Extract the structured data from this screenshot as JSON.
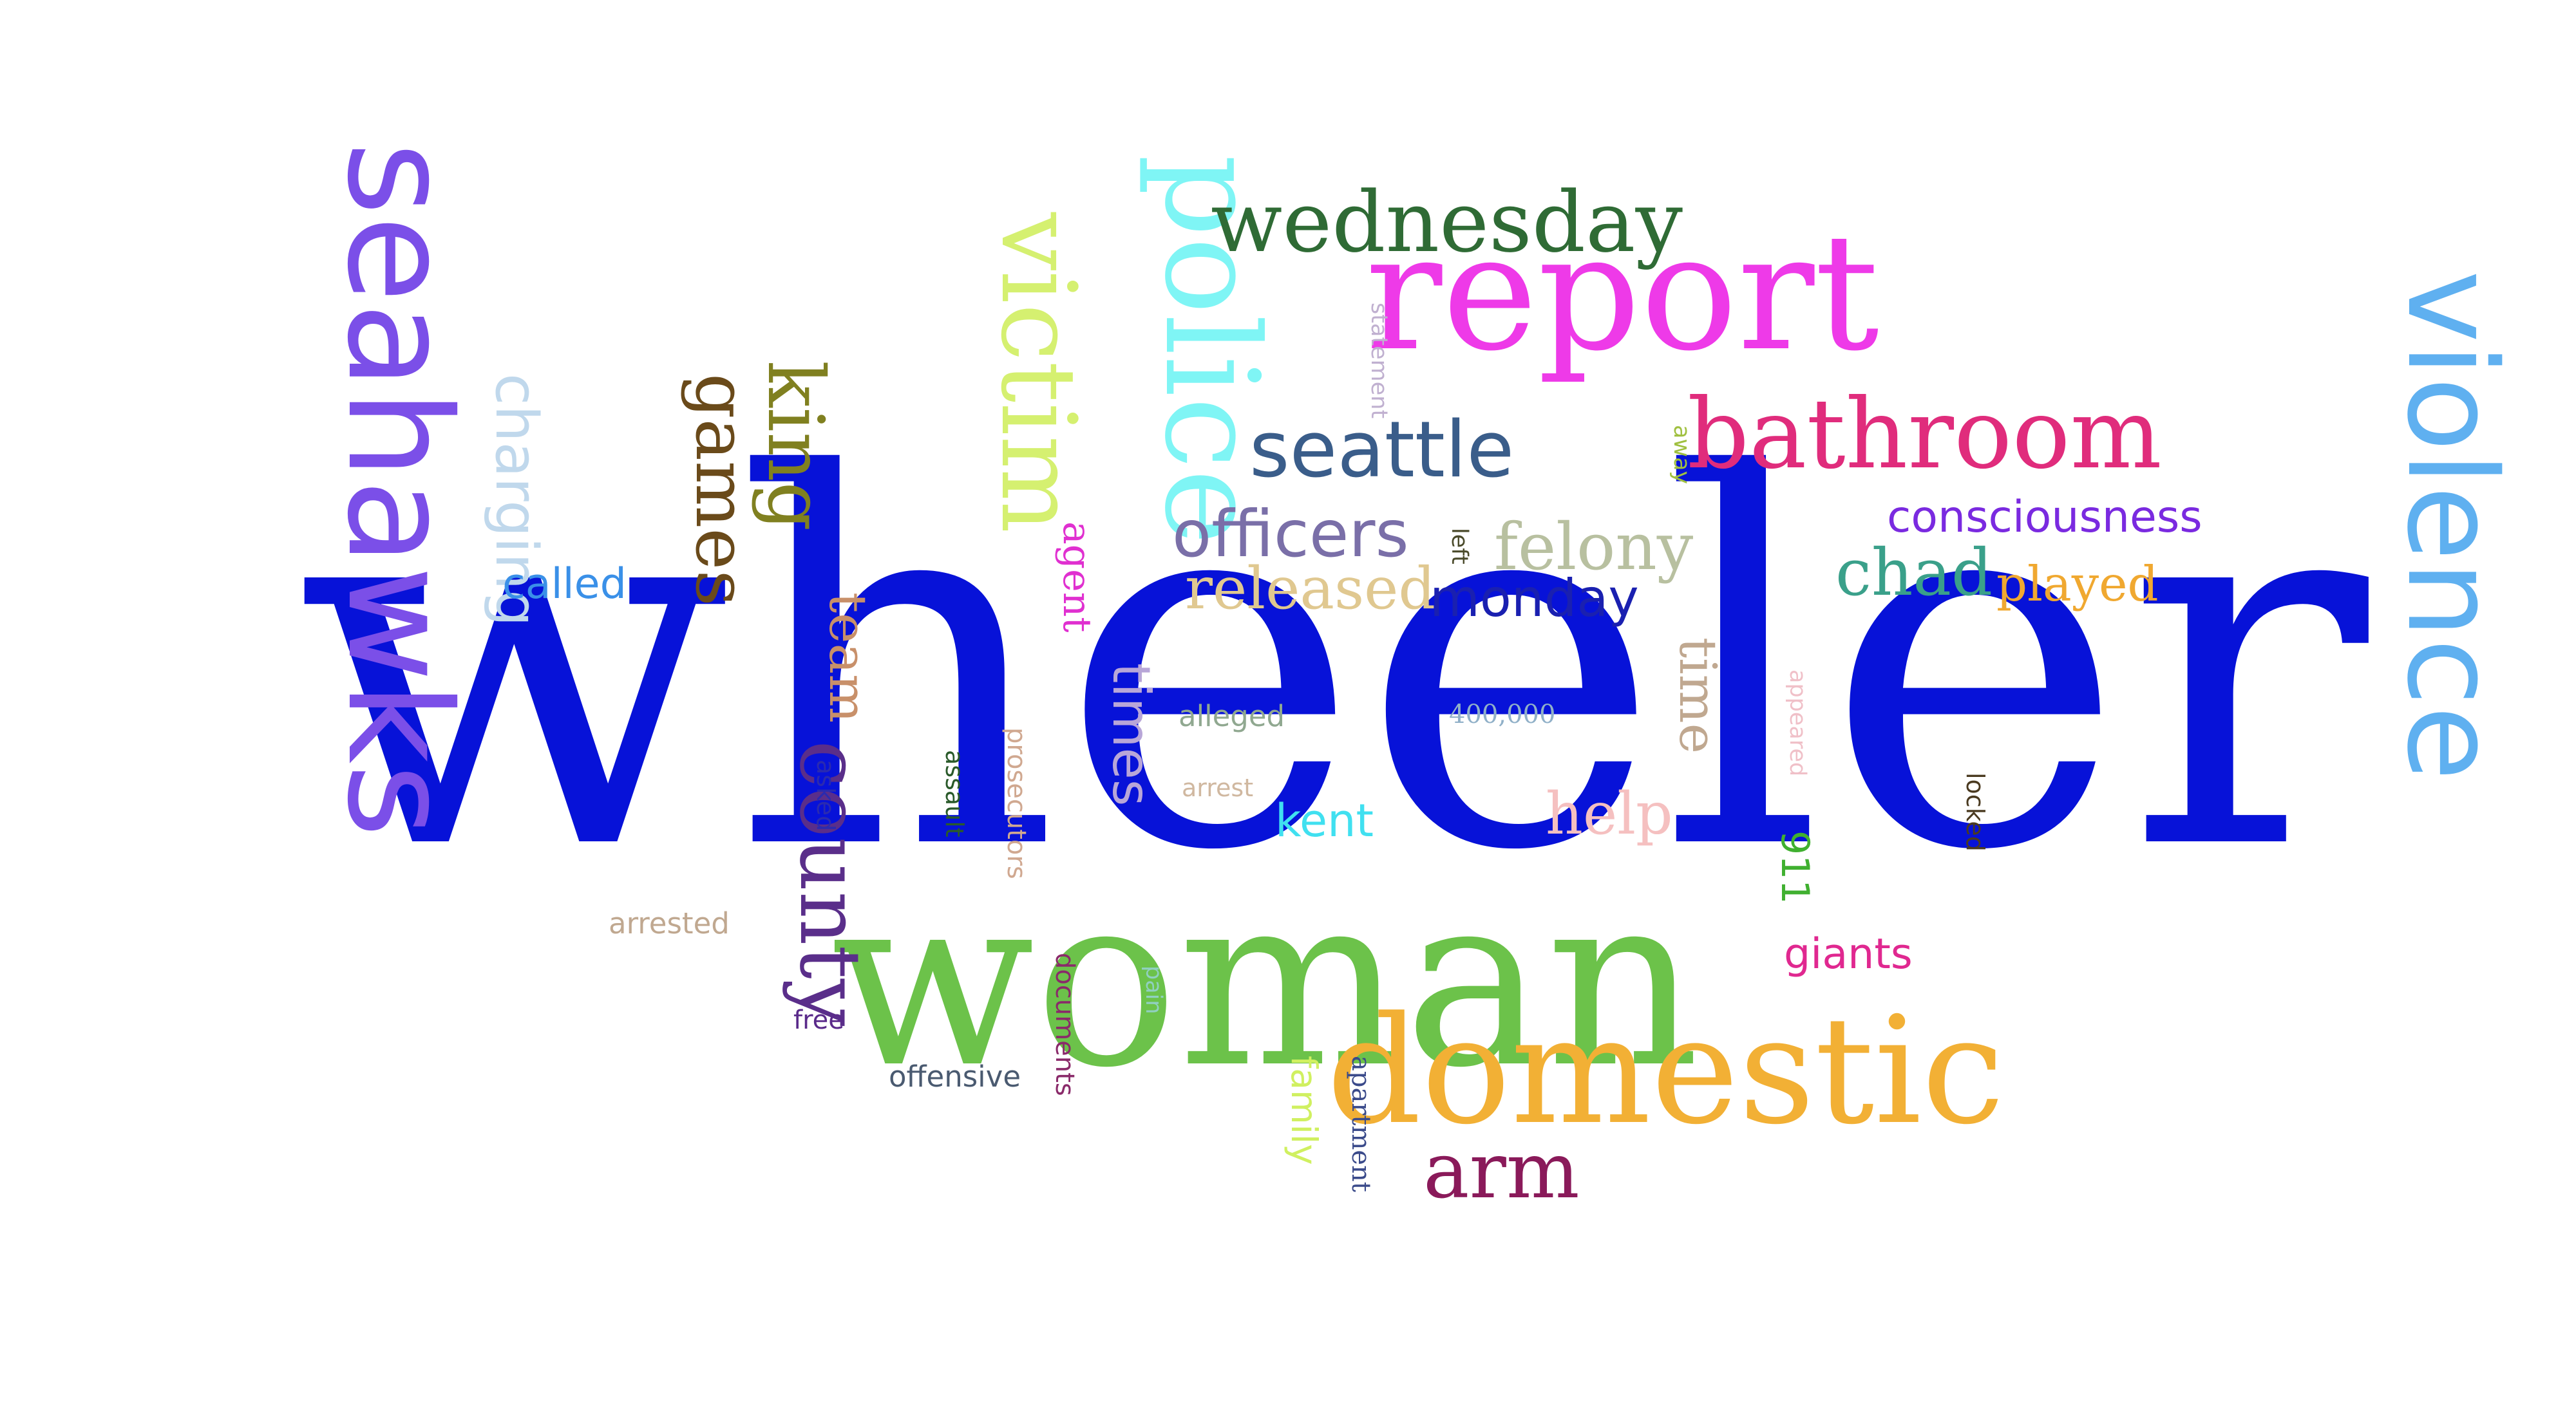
{
  "words": [
    {
      "id": "wheeler",
      "text": "wheeler",
      "color": "#0712d8",
      "vertical": false
    },
    {
      "id": "woman",
      "text": "woman",
      "color": "#6cc24a",
      "vertical": false
    },
    {
      "id": "seahawks",
      "text": "seahawks",
      "color": "#7b4fe8",
      "vertical": true
    },
    {
      "id": "violence",
      "text": "violence",
      "color": "#5fb0f0",
      "vertical": true
    },
    {
      "id": "report",
      "text": "report",
      "color": "#ee3ae8",
      "vertical": false
    },
    {
      "id": "domestic",
      "text": "domestic",
      "color": "#f2b035",
      "vertical": false
    },
    {
      "id": "police",
      "text": "police",
      "color": "#7ff5f5",
      "vertical": true
    },
    {
      "id": "victim",
      "text": "victim",
      "color": "#d5f070",
      "vertical": true
    },
    {
      "id": "wednesday",
      "text": "wednesday",
      "color": "#2f6b35",
      "vertical": false
    },
    {
      "id": "bathroom",
      "text": "bathroom",
      "color": "#e02c7c",
      "vertical": false
    },
    {
      "id": "seattle",
      "text": "seattle",
      "color": "#3a5d8a",
      "vertical": false
    },
    {
      "id": "county",
      "text": "county",
      "color": "#5a2e8a",
      "vertical": true
    },
    {
      "id": "king",
      "text": "king",
      "color": "#808020",
      "vertical": true
    },
    {
      "id": "games",
      "text": "games",
      "color": "#6a4a1a",
      "vertical": true
    },
    {
      "id": "officers",
      "text": "officers",
      "color": "#7a6fa8",
      "vertical": false
    },
    {
      "id": "arm",
      "text": "arm",
      "color": "#8a1a5a",
      "vertical": false
    },
    {
      "id": "times",
      "text": "times",
      "color": "#b8a6d8",
      "vertical": true
    },
    {
      "id": "felony",
      "text": "felony",
      "color": "#b8c0a0",
      "vertical": false
    },
    {
      "id": "chad",
      "text": "chad",
      "color": "#3aa08a",
      "vertical": false
    },
    {
      "id": "released",
      "text": "released",
      "color": "#e0c890",
      "vertical": false
    },
    {
      "id": "charging",
      "text": "charging",
      "color": "#c0d8ec",
      "vertical": true
    },
    {
      "id": "team",
      "text": "team",
      "color": "#c8906a",
      "vertical": true
    },
    {
      "id": "time",
      "text": "time",
      "color": "#c0a890",
      "vertical": true
    },
    {
      "id": "help",
      "text": "help",
      "color": "#f5c0c0",
      "vertical": false
    },
    {
      "id": "monday",
      "text": "monday",
      "color": "#1a20b0",
      "vertical": false
    },
    {
      "id": "consciousness",
      "text": "consciousness",
      "color": "#7a2ae0",
      "vertical": false
    },
    {
      "id": "played",
      "text": "played",
      "color": "#f0a830",
      "vertical": false
    },
    {
      "id": "called",
      "text": "called",
      "color": "#3a90e8",
      "vertical": false
    },
    {
      "id": "kent",
      "text": "kent",
      "color": "#40e0f0",
      "vertical": false
    },
    {
      "id": "giants",
      "text": "giants",
      "color": "#e02890",
      "vertical": false
    },
    {
      "id": "agent",
      "text": "agent",
      "color": "#e030d0",
      "vertical": true
    },
    {
      "id": "n911",
      "text": "911",
      "color": "#40b030",
      "vertical": true
    },
    {
      "id": "family",
      "text": "family",
      "color": "#d0f060",
      "vertical": true
    },
    {
      "id": "alleged",
      "text": "alleged",
      "color": "#90a890",
      "vertical": false
    },
    {
      "id": "offensive",
      "text": "offensive",
      "color": "#4a5a70",
      "vertical": false
    },
    {
      "id": "documents",
      "text": "documents",
      "color": "#8a2a6a",
      "vertical": true
    },
    {
      "id": "prosecutors",
      "text": "prosecutors",
      "color": "#d0a890",
      "vertical": true
    },
    {
      "id": "apartment",
      "text": "apartment",
      "color": "#3a4a8a",
      "vertical": true
    },
    {
      "id": "n400000",
      "text": "400,000",
      "color": "#90b0c8",
      "vertical": false
    },
    {
      "id": "arrested",
      "text": "arrested",
      "color": "#c0a890",
      "vertical": false
    },
    {
      "id": "statement",
      "text": "statement",
      "color": "#c0b0d0",
      "vertical": true
    },
    {
      "id": "appeared",
      "text": "appeared",
      "color": "#f0c0c8",
      "vertical": true
    },
    {
      "id": "free",
      "text": "free",
      "color": "#5a2a8a",
      "vertical": false
    },
    {
      "id": "assault",
      "text": "assault",
      "color": "#2a5a2a",
      "vertical": true
    },
    {
      "id": "arrest",
      "text": "arrest",
      "color": "#d0b8a0",
      "vertical": false
    },
    {
      "id": "pain",
      "text": "pain",
      "color": "#90d0c0",
      "vertical": true
    },
    {
      "id": "asked",
      "text": "asked",
      "color": "#2a2ab0",
      "vertical": true
    },
    {
      "id": "locked",
      "text": "locked",
      "color": "#4a3a20",
      "vertical": true
    },
    {
      "id": "away",
      "text": "away",
      "color": "#a0c040",
      "vertical": true
    },
    {
      "id": "left",
      "text": "left",
      "color": "#4a4a2a",
      "vertical": true
    }
  ]
}
